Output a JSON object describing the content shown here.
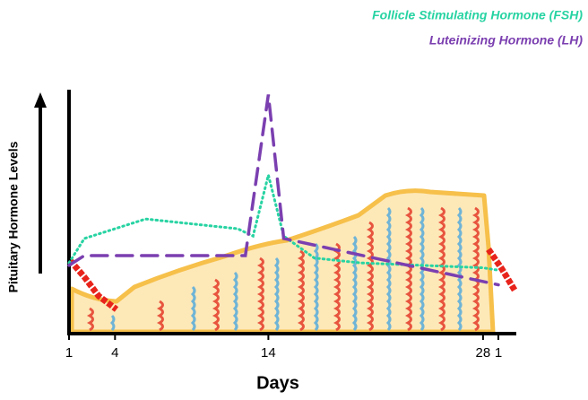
{
  "chart_data": {
    "type": "line",
    "x_label": "Days",
    "y_label": "Pituitary Hormone Levels",
    "xlim": [
      1,
      29
    ],
    "xticks": [
      1,
      4,
      14,
      28,
      {
        "value": 29,
        "label": "1"
      }
    ],
    "ylim": [
      0,
      100
    ],
    "series": [
      {
        "name": "Follicle Stimulating Hormone (FSH)",
        "color": "#27d3a2",
        "line_style": "dotted",
        "x": [
          1,
          2,
          6,
          12,
          13,
          14,
          15,
          17,
          20,
          28,
          29
        ],
        "values": [
          29,
          39,
          47,
          43,
          40,
          65,
          40,
          31,
          29,
          27,
          26
        ]
      },
      {
        "name": "Luteinizing Hormone (LH)",
        "color": "#7b3fb0",
        "line_style": "dashed",
        "x": [
          1,
          2,
          12.5,
          14,
          15,
          29
        ],
        "values": [
          28,
          32,
          32,
          98,
          39,
          20
        ]
      }
    ]
  }
}
